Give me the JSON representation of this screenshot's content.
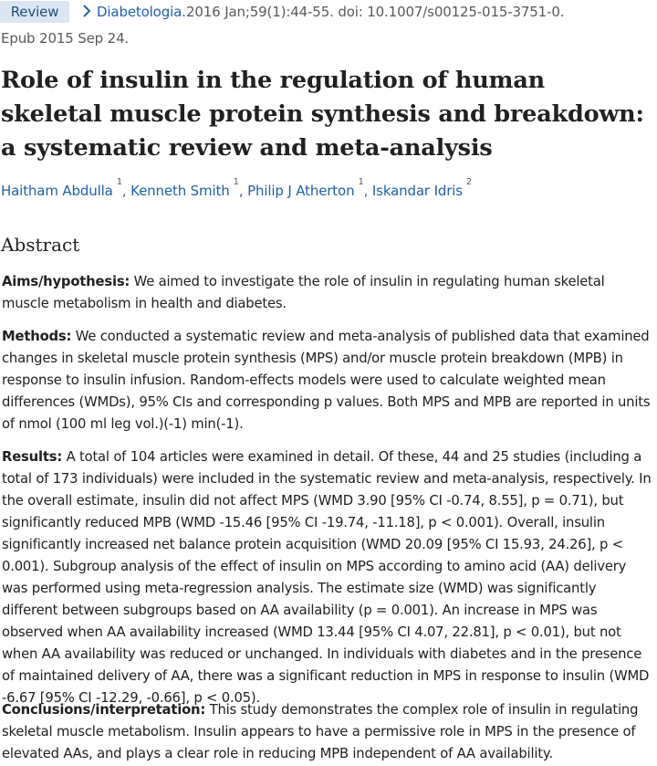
{
  "header": {
    "badge": "Review",
    "journal": "Diabetologia.",
    "citation": "2016 Jan;59(1):44-55. doi: 10.1007/s00125-015-3751-0.",
    "epub": "Epub 2015 Sep 24."
  },
  "title": "Role of insulin in the regulation of human skeletal muscle protein synthesis and breakdown: a systematic review and meta-analysis",
  "authors": [
    {
      "name": "Haitham Abdulla",
      "aff": "1"
    },
    {
      "name": "Kenneth Smith",
      "aff": "1"
    },
    {
      "name": "Philip J Atherton",
      "aff": "1"
    },
    {
      "name": "Iskandar Idris",
      "aff": "2"
    }
  ],
  "abstract": {
    "heading": "Abstract",
    "sections": [
      {
        "label": "Aims/hypothesis:",
        "text": "We aimed to investigate the role of insulin in regulating human skeletal muscle metabolism in health and diabetes."
      },
      {
        "label": "Methods:",
        "text": "We conducted a systematic review and meta-analysis of published data that examined changes in skeletal muscle protein synthesis (MPS) and/or muscle protein breakdown (MPB) in response to insulin infusion. Random-effects models were used to calculate weighted mean differences (WMDs), 95% CIs and corresponding p values. Both MPS and MPB are reported in units of nmol (100 ml leg vol.)(-1) min(-1)."
      },
      {
        "label": "Results:",
        "text": "A total of 104 articles were examined in detail. Of these, 44 and 25 studies (including a total of 173 individuals) were included in the systematic review and meta-analysis, respectively. In the overall estimate, insulin did not affect MPS (WMD 3.90 [95% CI -0.74, 8.55], p = 0.71), but significantly reduced MPB (WMD -15.46 [95% CI -19.74, -11.18], p < 0.001). Overall, insulin significantly increased net balance protein acquisition (WMD 20.09 [95% CI 15.93, 24.26], p < 0.001). Subgroup analysis of the effect of insulin on MPS according to amino acid (AA) delivery was performed using meta-regression analysis. The estimate size (WMD) was significantly different between subgroups based on AA availability (p = 0.001). An increase in MPS was observed when AA availability increased (WMD 13.44 [95% CI 4.07, 22.81], p < 0.01), but not when AA availability was reduced or unchanged. In individuals with diabetes and in the presence of maintained delivery of AA, there was a significant reduction in MPS in response to insulin (WMD -6.67 [95% CI -12.29, -0.66], p < 0.05)."
      },
      {
        "label": "Conclusions/interpretation:",
        "text": "This study demonstrates the complex role of insulin in regulating skeletal muscle metabolism. Insulin appears to have a permissive role in MPS in the presence of elevated AAs, and plays a clear role in reducing MPB independent of AA availability."
      }
    ]
  },
  "colors": {
    "link": "#2161a8",
    "badge_bg": "#dce6f2",
    "badge_text": "#1f4e79",
    "text": "#212121",
    "muted": "#5a5a5a"
  },
  "icons": {
    "journal_chevron": "chevron-right-icon"
  }
}
